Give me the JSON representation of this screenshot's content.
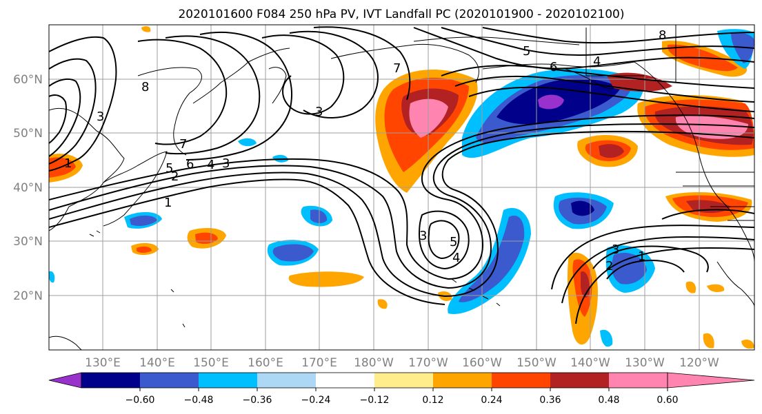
{
  "title": "2020101600 F084 250 hPa PV, IVT Landfall PC (2020101900 - 2020102100)",
  "map": {
    "lon_labels": [
      "130°E",
      "140°E",
      "150°E",
      "160°E",
      "170°E",
      "180°W",
      "170°W",
      "160°W",
      "150°W",
      "140°W",
      "130°W",
      "120°W"
    ],
    "lat_labels": [
      "60°N",
      "50°N",
      "40°N",
      "30°N",
      "20°N"
    ],
    "contour_labels": [
      "1",
      "2",
      "3",
      "3",
      "4",
      "5",
      "6",
      "7",
      "8",
      "3",
      "5",
      "4",
      "3",
      "2",
      "1",
      "5",
      "6",
      "7",
      "8",
      "4",
      "1",
      "3"
    ]
  },
  "colorbar": {
    "tick_labels": [
      "-0.60",
      "-0.48",
      "-0.36",
      "-0.24",
      "-0.12",
      "0.12",
      "0.24",
      "0.36",
      "0.48",
      "0.60"
    ],
    "colors": [
      "#9932cc",
      "#00008b",
      "#3a5acd",
      "#00bfff",
      "#add8f5",
      "#ffffff",
      "#ffec8b",
      "#ffa500",
      "#ff4500",
      "#b22222",
      "#ff85b0"
    ]
  }
}
